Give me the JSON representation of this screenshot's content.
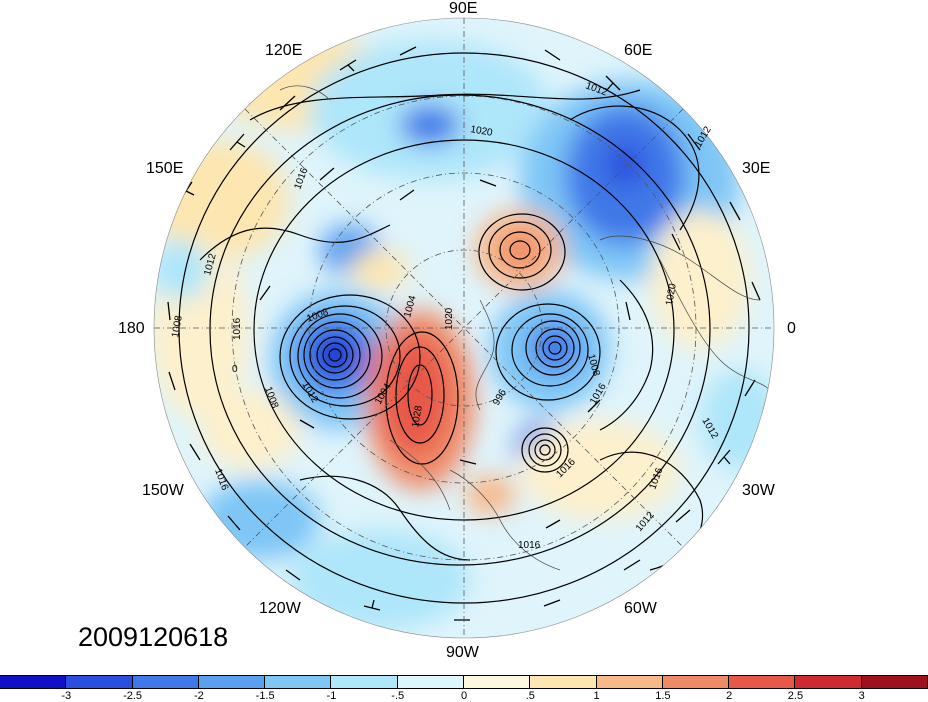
{
  "map": {
    "projection": "north polar stereographic",
    "field": "filled anomaly with sea-level-pressure contours and wind barbs",
    "longitude_labels": {
      "lon_90E": "90E",
      "lon_120E": "120E",
      "lon_60E": "60E",
      "lon_150E": "150E",
      "lon_30E": "30E",
      "lon_180": "180",
      "lon_0": "0",
      "lon_150W": "150W",
      "lon_30W": "30W",
      "lon_120W": "120W",
      "lon_60W": "60W",
      "lon_90W": "90W"
    },
    "contour_labels": [
      "1012",
      "1016",
      "1020",
      "1008",
      "1008",
      "1016",
      "1012",
      "1004",
      "1020",
      "1008",
      "1016",
      "1012",
      "1016",
      "1016",
      "1012",
      "1016",
      "1012",
      "1020",
      "1008",
      "1028",
      "996",
      "1016",
      "1012",
      "1004",
      "0"
    ]
  },
  "timestamp": "2009120618",
  "colorbar": {
    "colors": [
      "#1010c8",
      "#2a4fe0",
      "#3f78e8",
      "#5aa0f0",
      "#7ec6f6",
      "#aee6fa",
      "#dcf6fc",
      "#fdf8dc",
      "#fde6b0",
      "#f8b888",
      "#f08a66",
      "#e85848",
      "#d02a30",
      "#a0101c"
    ],
    "labels": [
      "-3",
      "-2.5",
      "-2",
      "-1.5",
      "-1",
      "-.5",
      "0",
      ".5",
      "1",
      "1.5",
      "2",
      "2.5",
      "3"
    ]
  }
}
